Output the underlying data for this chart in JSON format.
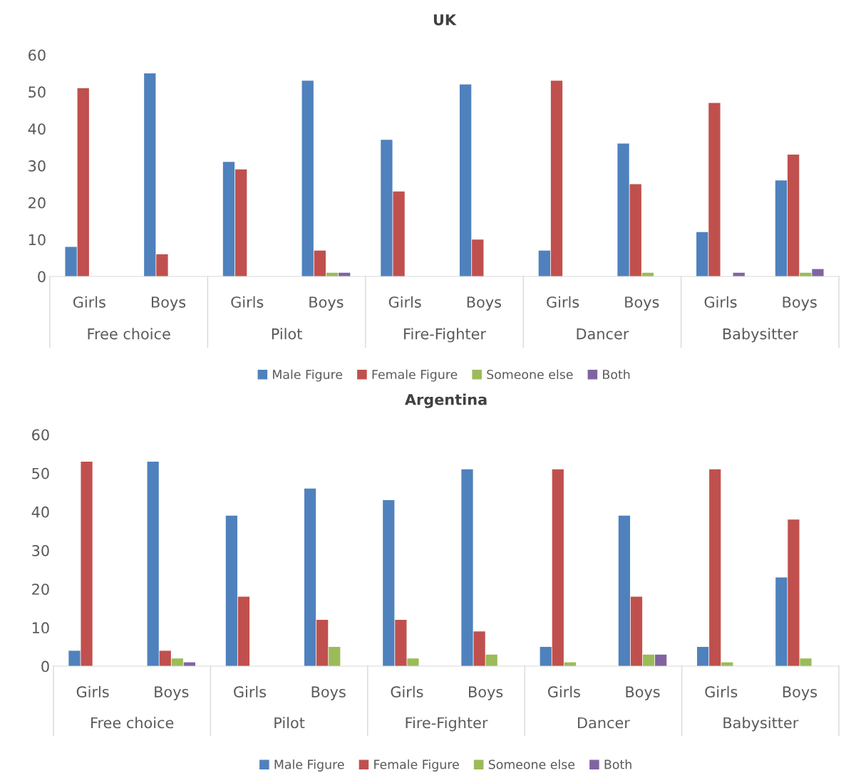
{
  "chart_data": [
    {
      "type": "bar",
      "title": "UK",
      "categories": [
        "Girls",
        "Boys",
        "Girls",
        "Boys",
        "Girls",
        "Boys",
        "Girls",
        "Boys",
        "Girls",
        "Boys"
      ],
      "annotations": [
        "Free choice",
        "Pilot",
        "Fire-Fighter",
        "Dancer",
        "Babysitter"
      ],
      "series": [
        {
          "name": "Male Figure",
          "color": "#4f81bd",
          "values": [
            8,
            55,
            31,
            53,
            37,
            52,
            7,
            36,
            12,
            26
          ]
        },
        {
          "name": "Female Figure",
          "color": "#c0504d",
          "values": [
            51,
            6,
            29,
            7,
            23,
            10,
            53,
            25,
            47,
            33
          ]
        },
        {
          "name": "Someone else",
          "color": "#9bbb59",
          "values": [
            null,
            null,
            null,
            1,
            null,
            null,
            null,
            1,
            null,
            1
          ]
        },
        {
          "name": "Both",
          "color": "#8064a2",
          "values": [
            null,
            null,
            null,
            1,
            null,
            null,
            null,
            null,
            1,
            2
          ]
        }
      ],
      "ylim": [
        0,
        60
      ],
      "yticks": [
        0,
        10,
        20,
        30,
        40,
        50,
        60
      ],
      "grid": false,
      "legend": "bottom"
    },
    {
      "type": "bar",
      "title": "Argentina",
      "categories": [
        "Girls",
        "Boys",
        "Girls",
        "Boys",
        "Girls",
        "Boys",
        "Girls",
        "Boys",
        "Girls",
        "Boys"
      ],
      "annotations": [
        "Free choice",
        "Pilot",
        "Fire-Fighter",
        "Dancer",
        "Babysitter"
      ],
      "series": [
        {
          "name": "Male Figure",
          "color": "#4f81bd",
          "values": [
            4,
            53,
            39,
            46,
            43,
            51,
            5,
            39,
            5,
            23
          ]
        },
        {
          "name": "Female Figure",
          "color": "#c0504d",
          "values": [
            53,
            4,
            18,
            12,
            12,
            9,
            51,
            18,
            51,
            38
          ]
        },
        {
          "name": "Someone else",
          "color": "#9bbb59",
          "values": [
            null,
            2,
            null,
            5,
            2,
            3,
            1,
            3,
            1,
            2
          ]
        },
        {
          "name": "Both",
          "color": "#8064a2",
          "values": [
            null,
            1,
            null,
            null,
            null,
            null,
            null,
            3,
            null,
            null
          ]
        }
      ],
      "ylim": [
        0,
        60
      ],
      "yticks": [
        0,
        10,
        20,
        30,
        40,
        50,
        60
      ],
      "grid": false,
      "legend": "bottom"
    }
  ]
}
